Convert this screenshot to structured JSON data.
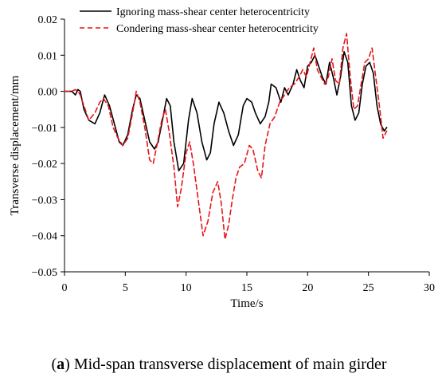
{
  "caption": {
    "prefix": "(",
    "label": "a",
    "text": ") Mid-span transverse displacement of main girder"
  },
  "chart_data": {
    "type": "line",
    "xlabel": "Time/s",
    "ylabel": "Transverse displacement/mm",
    "xlim": [
      0,
      30
    ],
    "ylim": [
      -0.05,
      0.02
    ],
    "xticks": [
      0,
      5,
      10,
      15,
      20,
      25,
      30
    ],
    "yticks": [
      0.02,
      0.01,
      0.0,
      -0.01,
      -0.02,
      -0.03,
      -0.04,
      -0.05
    ],
    "xtick_labels": [
      "0",
      "5",
      "10",
      "15",
      "20",
      "25",
      "30"
    ],
    "ytick_labels": [
      "0.02",
      "0.01",
      "0.00",
      "−0.01",
      "−0.02",
      "−0.03",
      "−0.04",
      "−0.05"
    ],
    "legend_position": "top",
    "grid": false,
    "series": [
      {
        "name": "Ignoring mass-shear center heterocentricity",
        "color": "#000000",
        "dash": "solid",
        "x": [
          0,
          0.6,
          0.9,
          1.1,
          1.3,
          1.6,
          2.0,
          2.5,
          2.9,
          3.3,
          3.7,
          4.1,
          4.5,
          4.8,
          5.2,
          5.6,
          5.9,
          6.2,
          6.6,
          7.0,
          7.4,
          7.7,
          8.0,
          8.4,
          8.7,
          9.0,
          9.4,
          9.8,
          10.2,
          10.5,
          10.9,
          11.3,
          11.7,
          12.0,
          12.3,
          12.7,
          13.1,
          13.5,
          13.9,
          14.3,
          14.7,
          15.0,
          15.4,
          15.7,
          16.1,
          16.5,
          16.8,
          17.0,
          17.4,
          17.8,
          18.1,
          18.4,
          18.8,
          19.1,
          19.4,
          19.7,
          20.0,
          20.3,
          20.6,
          20.9,
          21.2,
          21.5,
          21.8,
          22.1,
          22.4,
          22.7,
          23.0,
          23.3,
          23.6,
          23.9,
          24.2,
          24.5,
          24.8,
          25.1,
          25.4,
          25.7,
          26.0,
          26.3,
          26.5
        ],
        "y": [
          0.0,
          0.0,
          -0.001,
          0.0005,
          0.0,
          -0.005,
          -0.008,
          -0.009,
          -0.006,
          -0.001,
          -0.004,
          -0.009,
          -0.014,
          -0.015,
          -0.012,
          -0.005,
          -0.001,
          -0.002,
          -0.008,
          -0.014,
          -0.016,
          -0.014,
          -0.009,
          -0.002,
          -0.004,
          -0.014,
          -0.022,
          -0.02,
          -0.008,
          -0.002,
          -0.006,
          -0.014,
          -0.019,
          -0.017,
          -0.009,
          -0.003,
          -0.006,
          -0.011,
          -0.015,
          -0.012,
          -0.004,
          -0.002,
          -0.003,
          -0.006,
          -0.009,
          -0.007,
          -0.003,
          0.002,
          0.001,
          -0.003,
          0.001,
          -0.001,
          0.002,
          0.006,
          0.003,
          0.001,
          0.007,
          0.008,
          0.01,
          0.007,
          0.004,
          0.002,
          0.008,
          0.004,
          -0.001,
          0.004,
          0.011,
          0.008,
          -0.004,
          -0.008,
          -0.006,
          0.002,
          0.007,
          0.008,
          0.005,
          -0.004,
          -0.009,
          -0.011,
          -0.01
        ]
      },
      {
        "name": "Condering mass-shear center heterocentricity",
        "color": "#e8141b",
        "dash": "dashed",
        "x": [
          0,
          0.6,
          0.9,
          1.1,
          1.3,
          1.6,
          2.0,
          2.5,
          2.9,
          3.2,
          3.6,
          4.0,
          4.4,
          4.8,
          5.2,
          5.6,
          5.9,
          6.2,
          6.6,
          7.0,
          7.3,
          7.6,
          8.0,
          8.3,
          8.6,
          9.0,
          9.3,
          9.6,
          10.0,
          10.3,
          10.6,
          11.0,
          11.4,
          11.8,
          12.2,
          12.6,
          12.9,
          13.2,
          13.5,
          13.8,
          14.1,
          14.4,
          14.8,
          15.2,
          15.5,
          15.9,
          16.2,
          16.5,
          16.9,
          17.3,
          17.7,
          18.1,
          18.5,
          18.9,
          19.3,
          19.6,
          19.9,
          20.2,
          20.5,
          20.8,
          21.1,
          21.4,
          21.7,
          22.0,
          22.3,
          22.6,
          22.9,
          23.2,
          23.5,
          23.8,
          24.1,
          24.4,
          24.7,
          25.0,
          25.3,
          25.6,
          25.9,
          26.2,
          26.5
        ],
        "y": [
          0.0,
          0.0,
          0.0005,
          0.0,
          -0.001,
          -0.004,
          -0.008,
          -0.006,
          -0.003,
          -0.002,
          -0.004,
          -0.01,
          -0.013,
          -0.015,
          -0.013,
          -0.006,
          0.0,
          -0.003,
          -0.01,
          -0.019,
          -0.02,
          -0.015,
          -0.008,
          -0.005,
          -0.011,
          -0.021,
          -0.032,
          -0.027,
          -0.017,
          -0.014,
          -0.02,
          -0.03,
          -0.04,
          -0.036,
          -0.028,
          -0.025,
          -0.031,
          -0.041,
          -0.037,
          -0.03,
          -0.024,
          -0.021,
          -0.02,
          -0.015,
          -0.016,
          -0.022,
          -0.024,
          -0.015,
          -0.009,
          -0.007,
          -0.003,
          -0.001,
          0.001,
          0.002,
          0.004,
          0.006,
          0.004,
          0.008,
          0.012,
          0.006,
          0.004,
          0.002,
          0.004,
          0.009,
          0.003,
          0.002,
          0.012,
          0.016,
          0.004,
          -0.005,
          -0.004,
          0.002,
          0.008,
          0.009,
          0.012,
          0.004,
          -0.004,
          -0.013,
          -0.011
        ]
      }
    ]
  }
}
